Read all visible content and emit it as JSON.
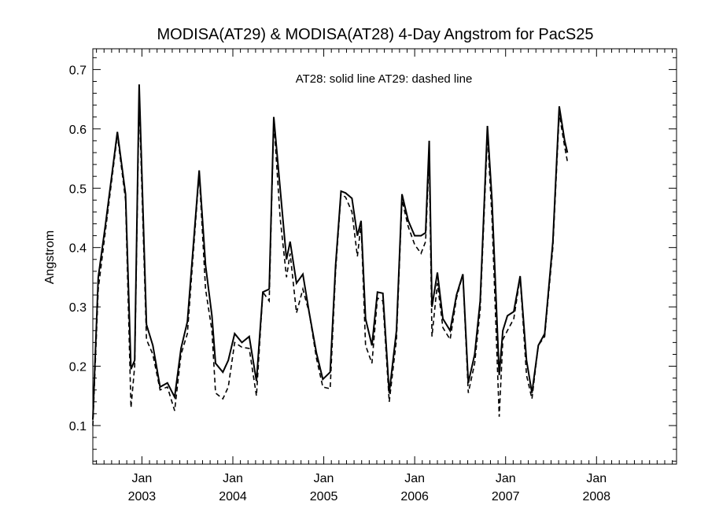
{
  "chart_data": {
    "type": "line",
    "title": "MODISA(AT29) & MODISA(AT28) 4-Day Angstrom for PacS25",
    "annotation": "AT28: solid line   AT29: dashed line",
    "ylabel": "Angstrom",
    "xlabel": "",
    "xlim": [
      2002.46,
      2008.88
    ],
    "ylim": [
      0.035,
      0.735
    ],
    "yticks": [
      0.1,
      0.2,
      0.3,
      0.4,
      0.5,
      0.6,
      0.7
    ],
    "ytick_labels": [
      "0.1",
      "0.2",
      "0.3",
      "0.4",
      "0.5",
      "0.6",
      "0.7"
    ],
    "xticks": [
      {
        "value": 2003,
        "month": "Jan",
        "year": "2003"
      },
      {
        "value": 2004,
        "month": "Jan",
        "year": "2004"
      },
      {
        "value": 2005,
        "month": "Jan",
        "year": "2005"
      },
      {
        "value": 2006,
        "month": "Jan",
        "year": "2006"
      },
      {
        "value": 2007,
        "month": "Jan",
        "year": "2007"
      },
      {
        "value": 2008,
        "month": "Jan",
        "year": "2008"
      }
    ],
    "grid": false,
    "series": [
      {
        "name": "AT28",
        "style": "solid",
        "points": [
          [
            2002.46,
            0.11
          ],
          [
            2002.52,
            0.35
          ],
          [
            2002.6,
            0.44
          ],
          [
            2002.73,
            0.595
          ],
          [
            2002.82,
            0.49
          ],
          [
            2002.88,
            0.195
          ],
          [
            2002.92,
            0.21
          ],
          [
            2002.97,
            0.675
          ],
          [
            2003.05,
            0.27
          ],
          [
            2003.12,
            0.235
          ],
          [
            2003.2,
            0.165
          ],
          [
            2003.28,
            0.172
          ],
          [
            2003.36,
            0.148
          ],
          [
            2003.43,
            0.23
          ],
          [
            2003.5,
            0.275
          ],
          [
            2003.63,
            0.53
          ],
          [
            2003.7,
            0.37
          ],
          [
            2003.77,
            0.285
          ],
          [
            2003.81,
            0.205
          ],
          [
            2003.89,
            0.19
          ],
          [
            2003.95,
            0.21
          ],
          [
            2004.02,
            0.255
          ],
          [
            2004.1,
            0.24
          ],
          [
            2004.18,
            0.25
          ],
          [
            2004.26,
            0.175
          ],
          [
            2004.33,
            0.325
          ],
          [
            2004.4,
            0.33
          ],
          [
            2004.45,
            0.62
          ],
          [
            2004.52,
            0.5
          ],
          [
            2004.59,
            0.38
          ],
          [
            2004.63,
            0.41
          ],
          [
            2004.7,
            0.34
          ],
          [
            2004.77,
            0.355
          ],
          [
            2004.84,
            0.29
          ],
          [
            2004.92,
            0.222
          ],
          [
            2004.99,
            0.178
          ],
          [
            2005.07,
            0.19
          ],
          [
            2005.13,
            0.37
          ],
          [
            2005.19,
            0.495
          ],
          [
            2005.24,
            0.492
          ],
          [
            2005.31,
            0.483
          ],
          [
            2005.37,
            0.42
          ],
          [
            2005.41,
            0.445
          ],
          [
            2005.46,
            0.28
          ],
          [
            2005.53,
            0.235
          ],
          [
            2005.59,
            0.325
          ],
          [
            2005.65,
            0.323
          ],
          [
            2005.72,
            0.155
          ],
          [
            2005.8,
            0.26
          ],
          [
            2005.86,
            0.49
          ],
          [
            2005.93,
            0.445
          ],
          [
            2006.0,
            0.42
          ],
          [
            2006.07,
            0.42
          ],
          [
            2006.12,
            0.425
          ],
          [
            2006.16,
            0.58
          ],
          [
            2006.19,
            0.3
          ],
          [
            2006.25,
            0.358
          ],
          [
            2006.31,
            0.28
          ],
          [
            2006.39,
            0.26
          ],
          [
            2006.46,
            0.32
          ],
          [
            2006.53,
            0.355
          ],
          [
            2006.59,
            0.172
          ],
          [
            2006.66,
            0.22
          ],
          [
            2006.72,
            0.31
          ],
          [
            2006.8,
            0.605
          ],
          [
            2006.85,
            0.48
          ],
          [
            2006.93,
            0.185
          ],
          [
            2006.97,
            0.26
          ],
          [
            2007.02,
            0.285
          ],
          [
            2007.09,
            0.292
          ],
          [
            2007.16,
            0.352
          ],
          [
            2007.23,
            0.21
          ],
          [
            2007.29,
            0.155
          ],
          [
            2007.36,
            0.235
          ],
          [
            2007.43,
            0.255
          ],
          [
            2007.52,
            0.41
          ],
          [
            2007.59,
            0.638
          ],
          [
            2007.65,
            0.58
          ],
          [
            2007.68,
            0.56
          ]
        ]
      },
      {
        "name": "AT29",
        "style": "dashed",
        "points": [
          [
            2002.46,
            0.1
          ],
          [
            2002.52,
            0.33
          ],
          [
            2002.6,
            0.43
          ],
          [
            2002.73,
            0.59
          ],
          [
            2002.82,
            0.48
          ],
          [
            2002.88,
            0.13
          ],
          [
            2002.92,
            0.2
          ],
          [
            2002.97,
            0.65
          ],
          [
            2003.05,
            0.245
          ],
          [
            2003.12,
            0.22
          ],
          [
            2003.2,
            0.16
          ],
          [
            2003.28,
            0.165
          ],
          [
            2003.36,
            0.125
          ],
          [
            2003.43,
            0.22
          ],
          [
            2003.5,
            0.255
          ],
          [
            2003.63,
            0.525
          ],
          [
            2003.7,
            0.33
          ],
          [
            2003.77,
            0.26
          ],
          [
            2003.81,
            0.155
          ],
          [
            2003.89,
            0.145
          ],
          [
            2003.95,
            0.165
          ],
          [
            2004.02,
            0.24
          ],
          [
            2004.1,
            0.232
          ],
          [
            2004.18,
            0.23
          ],
          [
            2004.26,
            0.15
          ],
          [
            2004.33,
            0.325
          ],
          [
            2004.4,
            0.31
          ],
          [
            2004.45,
            0.615
          ],
          [
            2004.52,
            0.45
          ],
          [
            2004.59,
            0.35
          ],
          [
            2004.63,
            0.39
          ],
          [
            2004.7,
            0.29
          ],
          [
            2004.77,
            0.33
          ],
          [
            2004.84,
            0.29
          ],
          [
            2004.92,
            0.213
          ],
          [
            2004.99,
            0.165
          ],
          [
            2005.07,
            0.162
          ],
          [
            2005.13,
            0.36
          ],
          [
            2005.19,
            0.49
          ],
          [
            2005.24,
            0.485
          ],
          [
            2005.31,
            0.46
          ],
          [
            2005.37,
            0.385
          ],
          [
            2005.41,
            0.44
          ],
          [
            2005.46,
            0.235
          ],
          [
            2005.53,
            0.205
          ],
          [
            2005.59,
            0.315
          ],
          [
            2005.65,
            0.31
          ],
          [
            2005.72,
            0.14
          ],
          [
            2005.8,
            0.245
          ],
          [
            2005.86,
            0.48
          ],
          [
            2005.93,
            0.435
          ],
          [
            2006.0,
            0.405
          ],
          [
            2006.07,
            0.39
          ],
          [
            2006.12,
            0.41
          ],
          [
            2006.16,
            0.555
          ],
          [
            2006.19,
            0.25
          ],
          [
            2006.25,
            0.34
          ],
          [
            2006.31,
            0.265
          ],
          [
            2006.39,
            0.245
          ],
          [
            2006.46,
            0.315
          ],
          [
            2006.53,
            0.355
          ],
          [
            2006.59,
            0.155
          ],
          [
            2006.66,
            0.205
          ],
          [
            2006.72,
            0.295
          ],
          [
            2006.8,
            0.59
          ],
          [
            2006.85,
            0.45
          ],
          [
            2006.93,
            0.115
          ],
          [
            2006.97,
            0.245
          ],
          [
            2007.02,
            0.26
          ],
          [
            2007.09,
            0.28
          ],
          [
            2007.16,
            0.35
          ],
          [
            2007.23,
            0.185
          ],
          [
            2007.29,
            0.145
          ],
          [
            2007.36,
            0.235
          ],
          [
            2007.43,
            0.25
          ],
          [
            2007.52,
            0.4
          ],
          [
            2007.59,
            0.625
          ],
          [
            2007.65,
            0.57
          ],
          [
            2007.68,
            0.545
          ]
        ]
      }
    ]
  }
}
